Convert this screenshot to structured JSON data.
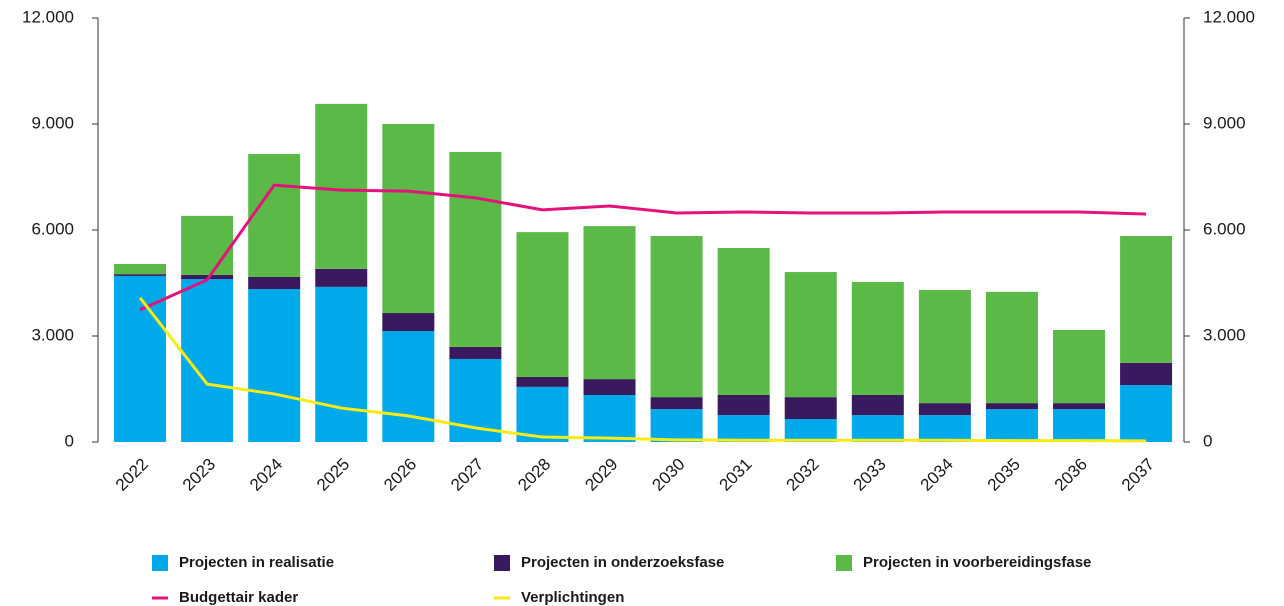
{
  "chart_data": {
    "type": "bar",
    "stacked": true,
    "categories": [
      "2022",
      "2023",
      "2024",
      "2025",
      "2026",
      "2027",
      "2028",
      "2029",
      "2030",
      "2031",
      "2032",
      "2033",
      "2034",
      "2035",
      "2036",
      "2037"
    ],
    "series": [
      {
        "name": "Projecten in realisatie",
        "color": "#00a9e9",
        "values": [
          4700,
          4610,
          4330,
          4390,
          3140,
          2350,
          1560,
          1330,
          930,
          760,
          650,
          760,
          760,
          930,
          930,
          1610
        ]
      },
      {
        "name": "Projecten in onderzoeksfase",
        "color": "#3a1a5e",
        "values": [
          50,
          120,
          340,
          510,
          510,
          340,
          280,
          450,
          340,
          570,
          620,
          570,
          340,
          170,
          170,
          630
        ]
      },
      {
        "name": "Projecten in voorbereidingsfase",
        "color": "#5bba47",
        "values": [
          290,
          1670,
          3480,
          4670,
          5350,
          5520,
          4100,
          4330,
          4560,
          4160,
          3540,
          3200,
          3200,
          3150,
          2070,
          3590
        ]
      },
      {
        "name": "Budgettair kader",
        "type": "line",
        "color": "#e5127d",
        "values": [
          3740,
          4590,
          7270,
          7130,
          7100,
          6910,
          6570,
          6680,
          6480,
          6510,
          6480,
          6480,
          6510,
          6510,
          6510,
          6450
        ]
      },
      {
        "name": "Verplichtingen",
        "type": "line",
        "color": "#f6eb14",
        "values": [
          4080,
          1640,
          1360,
          960,
          740,
          400,
          140,
          110,
          60,
          50,
          50,
          50,
          50,
          40,
          40,
          30
        ]
      }
    ],
    "ylim": [
      0,
      12000
    ],
    "yticks": [
      0,
      {
        "value": 3000,
        "label": "3.000"
      },
      {
        "value": 6000,
        "label": "6.000"
      },
      {
        "value": 9000,
        "label": "9.000"
      },
      {
        "value": 12000,
        "label": "12.000"
      }
    ],
    "y2lim": [
      0,
      12000
    ],
    "y2ticks": [
      0,
      {
        "value": 3000,
        "label": "3.000"
      },
      {
        "value": 6000,
        "label": "6.000"
      },
      {
        "value": 9000,
        "label": "9.000"
      },
      {
        "value": 12000,
        "label": "12.000"
      }
    ],
    "legend": "bottom"
  }
}
